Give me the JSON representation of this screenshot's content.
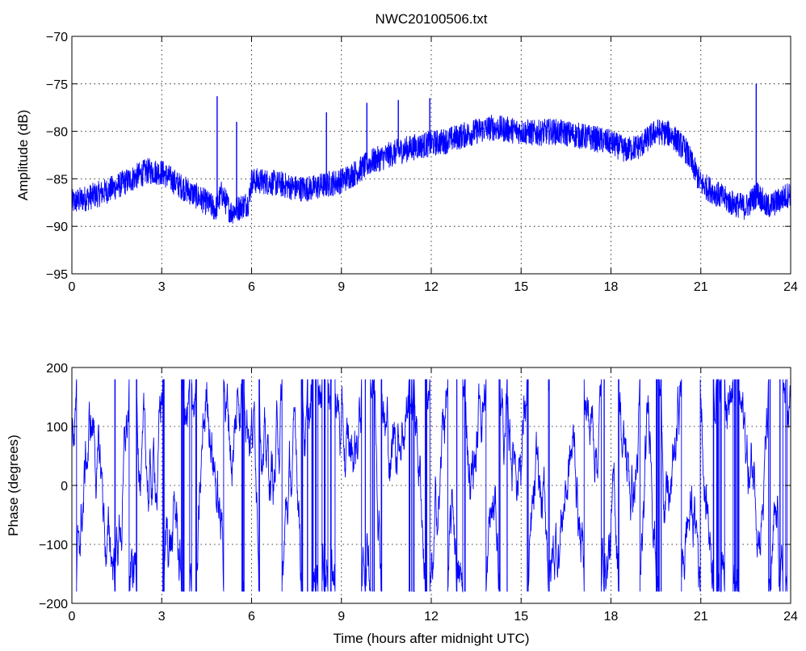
{
  "chart_data": [
    {
      "type": "line",
      "title": "NWC20100506.txt",
      "xlabel": "",
      "ylabel": "Amplitude (dB)",
      "xlim": [
        0,
        24
      ],
      "ylim": [
        -95,
        -70
      ],
      "xticks": [
        0,
        3,
        6,
        9,
        12,
        15,
        18,
        21,
        24
      ],
      "yticks": [
        -95,
        -90,
        -85,
        -80,
        -75,
        -70
      ],
      "xtick_labels": [
        "0",
        "3",
        "6",
        "9",
        "12",
        "15",
        "18",
        "21",
        "24"
      ],
      "ytick_labels": [
        "−95",
        "−90",
        "−85",
        "−80",
        "−75",
        "−70"
      ],
      "grid": true,
      "color": "#0000ff",
      "noise_band": 1.4,
      "series": [
        {
          "x": [
            0,
            0.5,
            1.0,
            1.5,
            2.0,
            2.5,
            3.0,
            3.5,
            4.0,
            4.5,
            4.8,
            5.0,
            5.3,
            5.6,
            5.9,
            6.0,
            6.5,
            7.0,
            7.5,
            8.0,
            8.5,
            9.0,
            9.5,
            10.0,
            10.5,
            11.0,
            11.5,
            12.0,
            12.5,
            13.0,
            13.5,
            14.0,
            14.5,
            15.0,
            15.5,
            16.0,
            16.5,
            17.0,
            17.5,
            18.0,
            18.5,
            19.0,
            19.5,
            20.0,
            20.5,
            21.0,
            21.5,
            22.0,
            22.5,
            22.9,
            23.2,
            23.5,
            24.0
          ],
          "y": [
            -87.5,
            -87.0,
            -86.5,
            -85.8,
            -85.0,
            -84.2,
            -84.3,
            -85.5,
            -86.5,
            -87.5,
            -88.2,
            -86.5,
            -88.5,
            -88.0,
            -87.5,
            -85.2,
            -85.3,
            -85.6,
            -86.0,
            -86.0,
            -85.6,
            -85.2,
            -84.3,
            -83.2,
            -82.6,
            -82.0,
            -81.6,
            -81.3,
            -81.0,
            -80.5,
            -80.0,
            -79.6,
            -79.8,
            -80.0,
            -80.2,
            -80.0,
            -80.2,
            -80.5,
            -80.8,
            -81.2,
            -82.0,
            -81.5,
            -80.0,
            -80.3,
            -82.0,
            -85.5,
            -86.5,
            -87.5,
            -88.0,
            -86.5,
            -88.0,
            -87.5,
            -86.5
          ]
        }
      ],
      "spikes": [
        {
          "x": 4.85,
          "y": -76.3
        },
        {
          "x": 5.5,
          "y": -79.0
        },
        {
          "x": 8.5,
          "y": -78.0
        },
        {
          "x": 9.85,
          "y": -77.0
        },
        {
          "x": 10.9,
          "y": -76.7
        },
        {
          "x": 11.95,
          "y": -76.5
        },
        {
          "x": 22.85,
          "y": -75.0
        }
      ]
    },
    {
      "type": "line",
      "title": "",
      "xlabel": "Time (hours after midnight UTC)",
      "ylabel": "Phase (degrees)",
      "xlim": [
        0,
        24
      ],
      "ylim": [
        -200,
        200
      ],
      "xticks": [
        0,
        3,
        6,
        9,
        12,
        15,
        18,
        21,
        24
      ],
      "yticks": [
        -200,
        -100,
        0,
        100,
        200
      ],
      "xtick_labels": [
        "0",
        "3",
        "6",
        "9",
        "12",
        "15",
        "18",
        "21",
        "24"
      ],
      "ytick_labels": [
        "−200",
        "−100",
        "0",
        "100",
        "200"
      ],
      "grid": true,
      "color": "#0000ff",
      "wrap_range": [
        -180,
        180
      ],
      "samples": 2600
    }
  ]
}
